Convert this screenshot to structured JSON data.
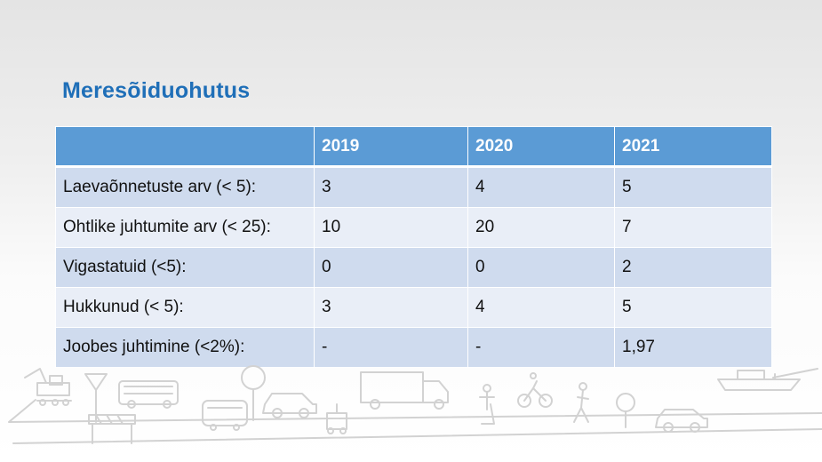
{
  "slide": {
    "title": "Meresõiduohutus"
  },
  "table": {
    "headers": [
      "",
      "2019",
      "2020",
      "2021"
    ],
    "rows": [
      [
        "Laevaõnnetuste arv (< 5):",
        "3",
        "4",
        "5"
      ],
      [
        "Ohtlike juhtumite arv (< 25):",
        "10",
        "20",
        "7"
      ],
      [
        "Vigastatuid (<5):",
        "0",
        "0",
        "2"
      ],
      [
        "Hukkunud (< 5):",
        "3",
        "4",
        "5"
      ],
      [
        "Joobes juhtimine (<2%):",
        "-",
        "-",
        "1,97"
      ]
    ]
  },
  "colors": {
    "title": "#1f6fb8",
    "header_bg": "#5b9bd5",
    "row_dark": "#cfdbee",
    "row_light": "#e9eef7",
    "illustration": "#d2d2d2"
  },
  "decoration": {
    "icons": [
      "excavator-icon",
      "yield-sign-icon",
      "bus-icon",
      "traffic-barrier-icon",
      "tree-icon",
      "car-icon",
      "delivery-robot-icon",
      "truck-icon",
      "pedestrian-icon",
      "cyclist-icon",
      "scooter-rider-icon",
      "ship-icon"
    ]
  }
}
